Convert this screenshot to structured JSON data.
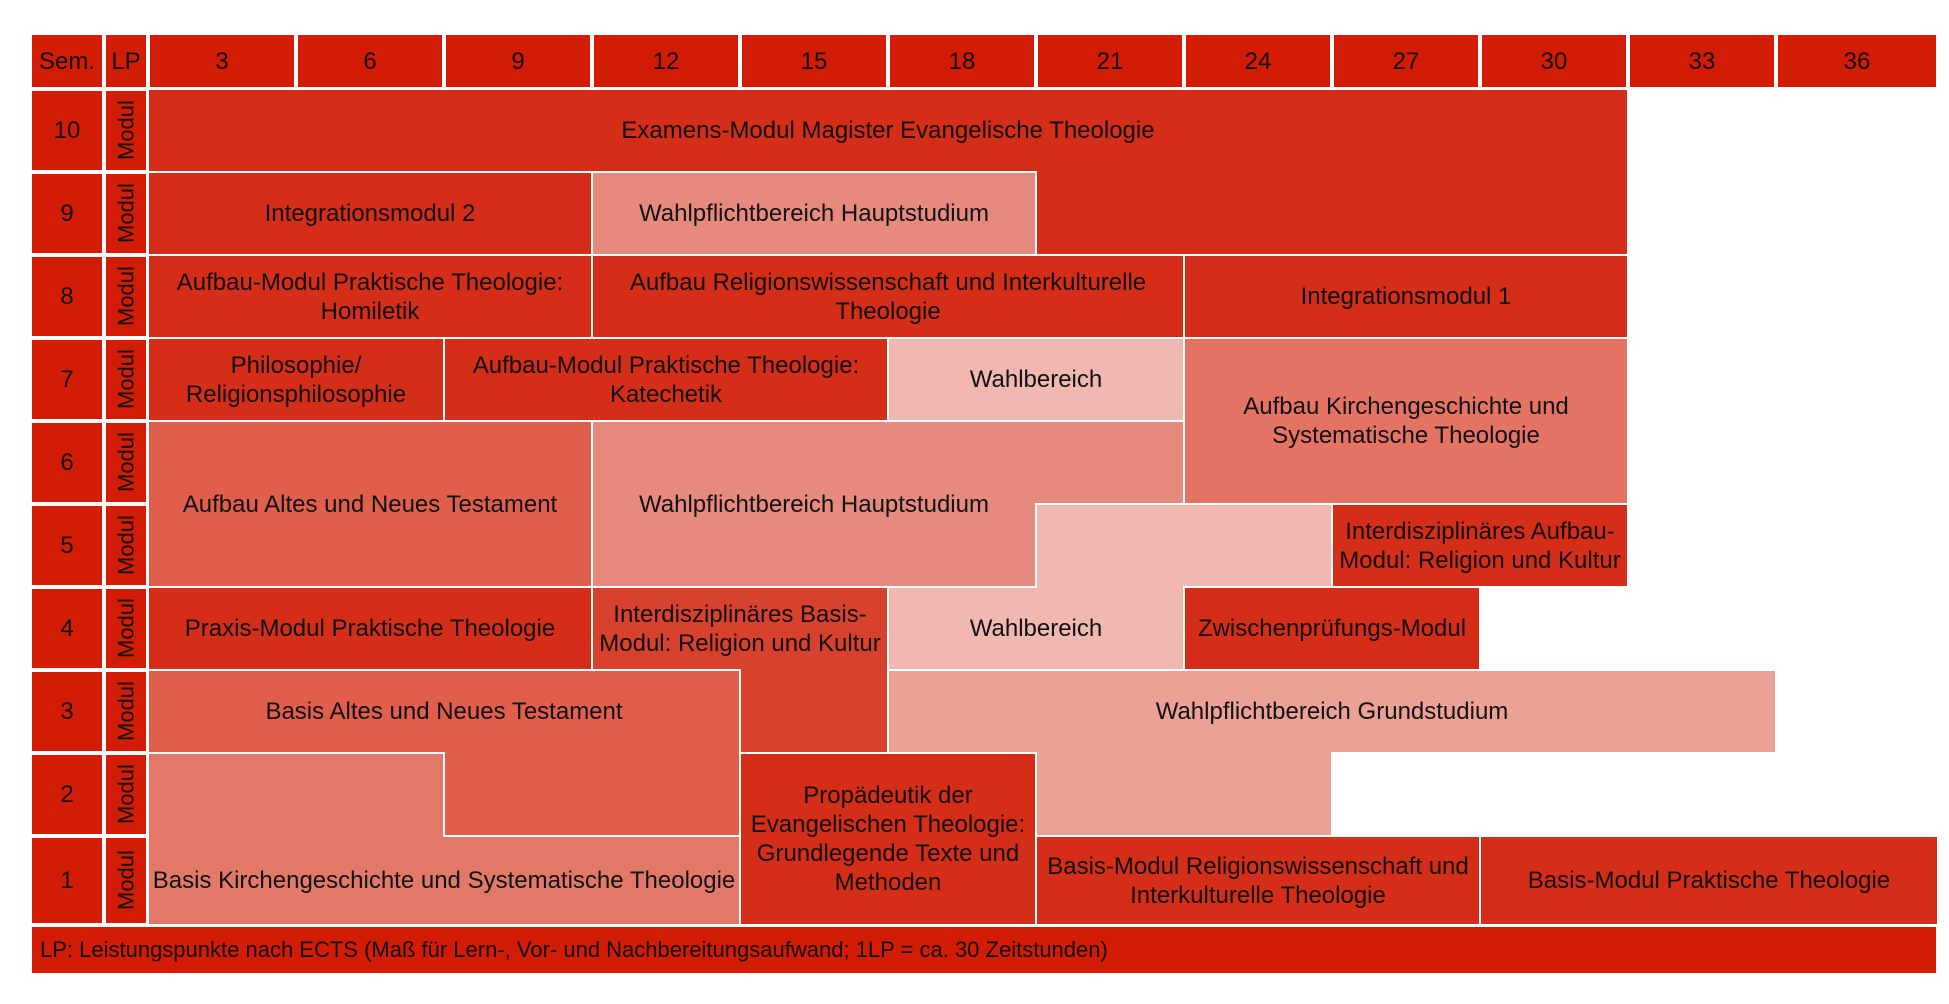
{
  "header": {
    "sem_label": "Sem.",
    "lp_label": "LP",
    "columns": [
      "3",
      "6",
      "9",
      "12",
      "15",
      "18",
      "21",
      "24",
      "27",
      "30",
      "33",
      "36"
    ]
  },
  "rows": [
    {
      "sem": "10",
      "type": "Modul"
    },
    {
      "sem": "9",
      "type": "Modul"
    },
    {
      "sem": "8",
      "type": "Modul"
    },
    {
      "sem": "7",
      "type": "Modul"
    },
    {
      "sem": "6",
      "type": "Modul"
    },
    {
      "sem": "5",
      "type": "Modul"
    },
    {
      "sem": "4",
      "type": "Modul"
    },
    {
      "sem": "3",
      "type": "Modul"
    },
    {
      "sem": "2",
      "type": "Modul"
    },
    {
      "sem": "1",
      "type": "Modul"
    }
  ],
  "colors": {
    "header": "#d31c05",
    "pflicht": "#d42d18",
    "pflicht_dark": "#d42d18",
    "mid": "#df5e4c",
    "aufbau_kg": "#e47364",
    "basis_kg": "#e27868",
    "wahlpflicht": "#e78a7e",
    "wahlpflicht_grund": "#eba196",
    "wahlbereich": "#f0b8b0",
    "interdis_basis": "#d8412e"
  },
  "modules": [
    {
      "name": "examens",
      "label": "Examens-Modul Magister Evangelische Theologie",
      "color": "#d42d18"
    },
    {
      "name": "integrationsmodul-2",
      "label": "Integrationsmodul 2",
      "color": "#d42d18"
    },
    {
      "name": "wahlpflicht-haupt-9",
      "label": "Wahlpflichtbereich Hauptstudium",
      "color": "#e78a7e"
    },
    {
      "name": "aufbau-homiletik",
      "label": "Aufbau-Modul Praktische Theologie: Homiletik",
      "color": "#d42d18"
    },
    {
      "name": "aufbau-religionswissenschaft",
      "label": "Aufbau Religionswissenschaft und Interkulturelle Theologie",
      "color": "#d42d18"
    },
    {
      "name": "integrationsmodul-1",
      "label": "Integrationsmodul 1",
      "color": "#d42d18"
    },
    {
      "name": "philosophie",
      "label": "Philosophie/ Religionsphilosophie",
      "color": "#d42d18"
    },
    {
      "name": "aufbau-katechetik",
      "label": "Aufbau-Modul Praktische Theologie: Katechetik",
      "color": "#d42d18"
    },
    {
      "name": "wahlbereich-7",
      "label": "Wahlbereich",
      "color": "#f0b8b0"
    },
    {
      "name": "aufbau-kirchengeschichte",
      "label": "Aufbau Kirchengeschichte und Systematische Theologie",
      "color": "#e47364"
    },
    {
      "name": "aufbau-at-nt",
      "label": "Aufbau Altes und Neues Testament",
      "color": "#df5e4c"
    },
    {
      "name": "wahlpflicht-haupt-56",
      "label": "Wahlpflichtbereich Hauptstudium",
      "color": "#e78a7e"
    },
    {
      "name": "wahlbereich-45",
      "label": "Wahlbereich",
      "color": "#f0b8b0"
    },
    {
      "name": "interdis-aufbau",
      "label": "Interdisziplinäres Aufbau-Modul: Religion und Kultur",
      "color": "#d42d18"
    },
    {
      "name": "praxis-modul",
      "label": "Praxis-Modul Praktische Theologie",
      "color": "#d42d18"
    },
    {
      "name": "interdis-basis",
      "label": "Interdisziplinäres Basis-Modul: Religion und Kultur",
      "color": "#d8412e"
    },
    {
      "name": "zwischenpruefung",
      "label": "Zwischenprüfungs-Modul",
      "color": "#d42d18"
    },
    {
      "name": "basis-at-nt",
      "label": "Basis Altes und Neues Testament",
      "color": "#df5e4c"
    },
    {
      "name": "wahlpflicht-grund",
      "label": "Wahlpflichtbereich Grundstudium",
      "color": "#eba196"
    },
    {
      "name": "basis-kirchengeschichte",
      "label": "Basis Kirchengeschichte und Systematische Theologie",
      "color": "#e27868"
    },
    {
      "name": "propaedeutik",
      "label": "Propädeutik der Evangelischen Theologie: Grundlegende Texte und Methoden",
      "color": "#d42d18"
    },
    {
      "name": "basis-religionswissenschaft",
      "label": "Basis-Modul Religionswissenschaft und Interkulturelle Theologie",
      "color": "#d42d18"
    },
    {
      "name": "basis-praktische",
      "label": "Basis-Modul Praktische Theologie",
      "color": "#d42d18"
    }
  ],
  "footer": "LP: Leistungspunkte nach ECTS (Maß für Lern-, Vor- und Nachbereitungsaufwand; 1LP = ca. 30 Zeitstunden)"
}
